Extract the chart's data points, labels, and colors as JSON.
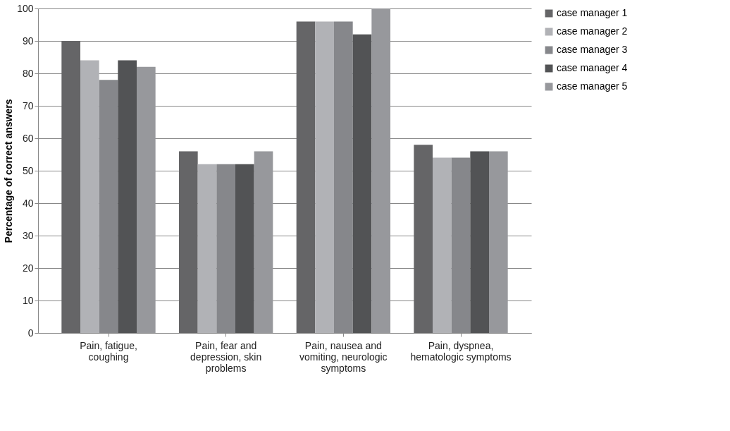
{
  "chart_data": {
    "type": "bar",
    "ylabel": "Percentage of correct answers",
    "categories": [
      "Pain, fatigue, coughing",
      "Pain, fear and depression, skin problems",
      "Pain, nausea and vomiting, neurologic symptoms",
      "Pain, dyspnea, hematologic symptoms"
    ],
    "series": [
      {
        "name": "case manager 1",
        "color": "#656567",
        "values": [
          90,
          56,
          96,
          58
        ]
      },
      {
        "name": "case manager 2",
        "color": "#b1b2b6",
        "values": [
          84,
          52,
          96,
          54
        ]
      },
      {
        "name": "case manager 3",
        "color": "#86878b",
        "values": [
          78,
          52,
          96,
          54
        ]
      },
      {
        "name": "case manager 4",
        "color": "#525355",
        "values": [
          84,
          52,
          92,
          56
        ]
      },
      {
        "name": "case manager 5",
        "color": "#97989c",
        "values": [
          82,
          56,
          100,
          56
        ]
      }
    ],
    "ylim": [
      0,
      100
    ],
    "yticks": [
      0,
      10,
      20,
      30,
      40,
      50,
      60,
      70,
      80,
      90,
      100
    ],
    "grid": "y",
    "legend": "right"
  }
}
